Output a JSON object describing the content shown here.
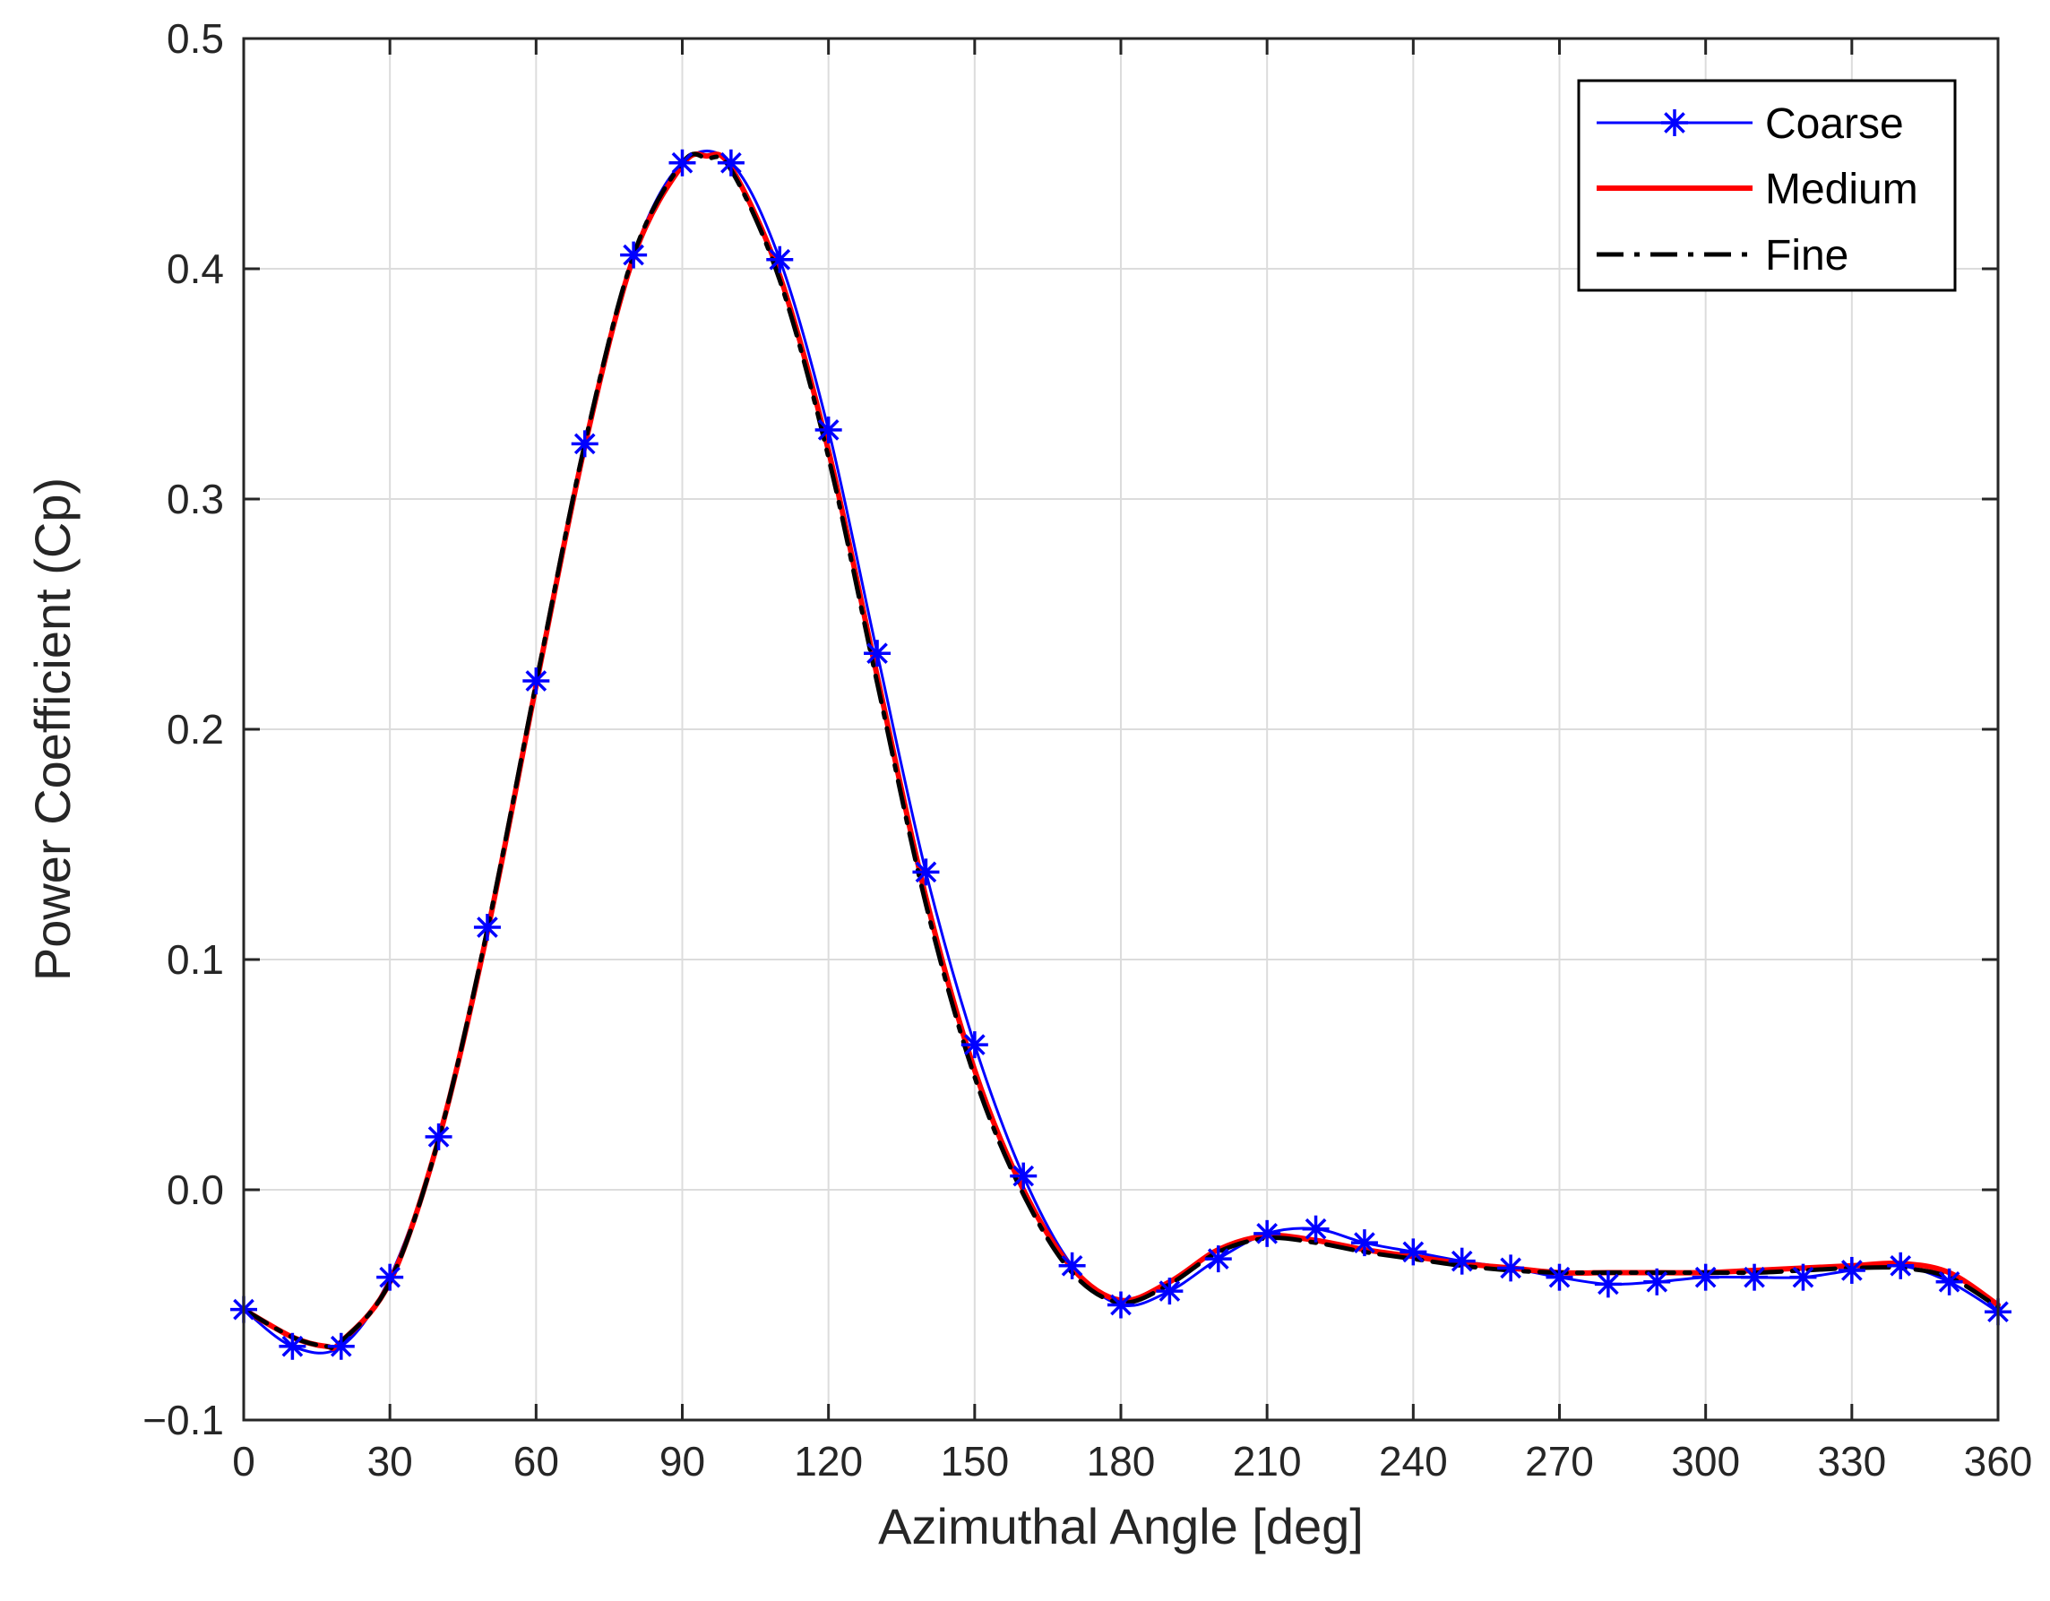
{
  "chart_data": {
    "type": "line",
    "xlabel": "Azimuthal Angle [deg]",
    "ylabel": "Power Coefficient (Cp)",
    "xlim": [
      0,
      360
    ],
    "ylim": [
      -0.1,
      0.5
    ],
    "x_ticks": [
      "0",
      "30",
      "60",
      "90",
      "120",
      "150",
      "180",
      "210",
      "240",
      "270",
      "300",
      "330",
      "360"
    ],
    "y_ticks": [
      "−0.1",
      "0.0",
      "0.1",
      "0.2",
      "0.3",
      "0.4",
      "0.5"
    ],
    "grid": true,
    "legend_position": "top-right",
    "series": [
      {
        "name": "Coarse",
        "color": "#0000ff",
        "style": "solid",
        "marker": "asterisk",
        "x": [
          0,
          10,
          20,
          30,
          40,
          50,
          60,
          70,
          80,
          90,
          100,
          110,
          120,
          130,
          140,
          150,
          160,
          170,
          180,
          190,
          200,
          210,
          220,
          230,
          240,
          250,
          260,
          270,
          280,
          290,
          300,
          310,
          320,
          330,
          340,
          350,
          360
        ],
        "y": [
          -0.052,
          -0.068,
          -0.068,
          -0.038,
          0.023,
          0.114,
          0.221,
          0.324,
          0.406,
          0.446,
          0.446,
          0.404,
          0.33,
          0.233,
          0.138,
          0.063,
          0.006,
          -0.033,
          -0.05,
          -0.044,
          -0.03,
          -0.019,
          -0.017,
          -0.023,
          -0.027,
          -0.031,
          -0.034,
          -0.038,
          -0.041,
          -0.04,
          -0.038,
          -0.038,
          -0.038,
          -0.035,
          -0.033,
          -0.04,
          -0.053
        ]
      },
      {
        "name": "Medium",
        "color": "#ff0000",
        "style": "solid",
        "marker": "none",
        "x": [
          0,
          10,
          17,
          20,
          30,
          40,
          50,
          60,
          70,
          80,
          90,
          95,
          100,
          110,
          120,
          130,
          140,
          150,
          160,
          170,
          180,
          190,
          200,
          210,
          220,
          230,
          240,
          250,
          260,
          270,
          280,
          290,
          300,
          310,
          320,
          330,
          340,
          350,
          360
        ],
        "y": [
          -0.052,
          -0.064,
          -0.068,
          -0.066,
          -0.04,
          0.022,
          0.112,
          0.219,
          0.323,
          0.405,
          0.445,
          0.449,
          0.444,
          0.397,
          0.321,
          0.223,
          0.127,
          0.052,
          0.0,
          -0.034,
          -0.048,
          -0.04,
          -0.026,
          -0.02,
          -0.022,
          -0.026,
          -0.029,
          -0.032,
          -0.034,
          -0.036,
          -0.036,
          -0.036,
          -0.036,
          -0.035,
          -0.034,
          -0.033,
          -0.032,
          -0.036,
          -0.05
        ]
      },
      {
        "name": "Fine",
        "color": "#000000",
        "style": "dashdot",
        "marker": "none",
        "x": [
          0,
          10,
          17,
          20,
          30,
          40,
          50,
          60,
          70,
          80,
          90,
          95,
          100,
          110,
          120,
          130,
          140,
          150,
          160,
          170,
          180,
          190,
          200,
          210,
          220,
          230,
          240,
          250,
          260,
          270,
          280,
          290,
          300,
          310,
          320,
          330,
          340,
          350,
          360
        ],
        "y": [
          -0.052,
          -0.064,
          -0.068,
          -0.066,
          -0.04,
          0.022,
          0.113,
          0.22,
          0.324,
          0.406,
          0.446,
          0.448,
          0.443,
          0.395,
          0.318,
          0.22,
          0.124,
          0.049,
          -0.002,
          -0.036,
          -0.049,
          -0.041,
          -0.027,
          -0.021,
          -0.023,
          -0.027,
          -0.03,
          -0.033,
          -0.035,
          -0.036,
          -0.036,
          -0.036,
          -0.036,
          -0.036,
          -0.035,
          -0.034,
          -0.034,
          -0.038,
          -0.051
        ]
      }
    ]
  }
}
